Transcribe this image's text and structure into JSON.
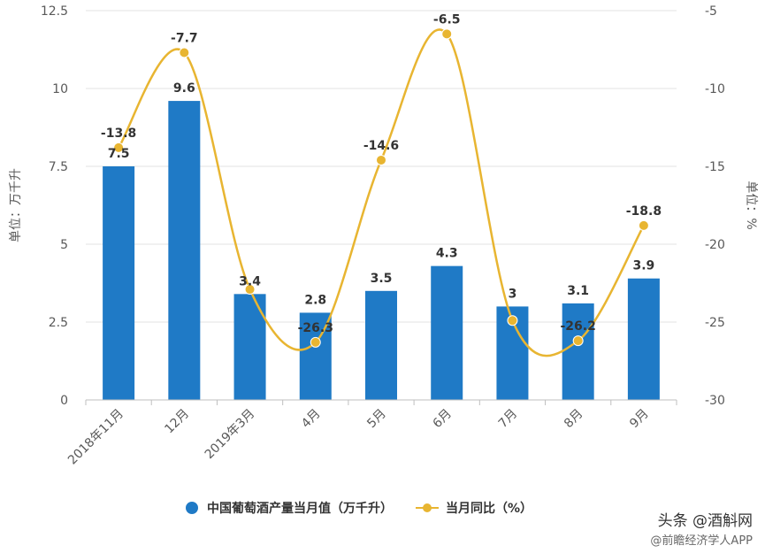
{
  "chart_data": {
    "type": "bar+line",
    "categories": [
      "2018年11月",
      "12月",
      "2019年3月",
      "4月",
      "5月",
      "6月",
      "7月",
      "8月",
      "9月"
    ],
    "series": [
      {
        "name": "中国葡萄酒产量当月值（万千升）",
        "type": "bar",
        "axis": "left",
        "values": [
          7.5,
          9.6,
          3.4,
          2.8,
          3.5,
          4.3,
          3,
          3.1,
          3.9
        ]
      },
      {
        "name": "当月同比（%）",
        "type": "line",
        "axis": "right",
        "values": [
          -13.8,
          -7.7,
          -22.9,
          -26.3,
          -14.6,
          -6.5,
          -24.9,
          -26.2,
          -18.8
        ]
      }
    ],
    "bar_labels": [
      "7.5",
      "9.6",
      "3.4",
      "2.8",
      "3.5",
      "4.3",
      "3",
      "3.1",
      "3.9"
    ],
    "line_labels": [
      "-13.8",
      "-7.7",
      "",
      "-26.3",
      "-14.6",
      "-6.5",
      "",
      "-26.2",
      "-18.8"
    ],
    "ylabel_left": "单位：万千升",
    "ylabel_right": "单位：%",
    "ylim_left": [
      0,
      12.5
    ],
    "ylim_right": [
      -30,
      -5
    ],
    "yticks_left": [
      "0",
      "2.5",
      "5",
      "7.5",
      "10",
      "12.5"
    ],
    "yticks_right": [
      "-30",
      "-25",
      "-20",
      "-15",
      "-10",
      "-5"
    ],
    "grid": true,
    "legend_position": "bottom",
    "colors": {
      "bar": "#1f7ac6",
      "line": "#e8b531",
      "grid": "#e3e3e3"
    }
  },
  "footer": {
    "source": "头条 @酒斛网",
    "subsource": "@前瞻经济学人APP"
  }
}
